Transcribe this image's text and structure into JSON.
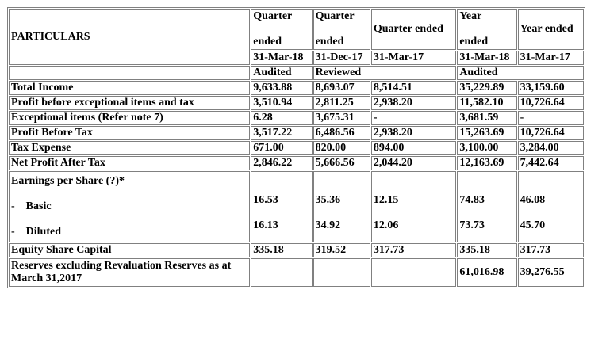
{
  "header": {
    "particulars": "PARTICULARS",
    "q1": {
      "line1": "Quarter",
      "line2": "ended",
      "date": "31-Mar-18",
      "status": "Audited"
    },
    "q2": {
      "line1": "Quarter",
      "line2": "ended",
      "date": "31-Dec-17",
      "status": "Reviewed"
    },
    "q3": {
      "line1": "Quarter ended",
      "date": "31-Mar-17",
      "status": ""
    },
    "y1": {
      "line1": "Year",
      "line2": "ended",
      "date": "31-Mar-18",
      "status": "Audited"
    },
    "y2": {
      "line1": "Year ended",
      "date": "31-Mar-17",
      "status": ""
    }
  },
  "rows": [
    {
      "label": "Total Income",
      "v": [
        "9,633.88",
        "8,693.07",
        "8,514.51",
        "35,229.89",
        "33,159.60"
      ]
    },
    {
      "label": "Profit before exceptional items and tax",
      "v": [
        "3,510.94",
        "2,811.25",
        "2,938.20",
        "11,582.10",
        "10,726.64"
      ]
    },
    {
      "label": "Exceptional items (Refer note 7)",
      "v": [
        "6.28",
        "3,675.31",
        "-",
        "3,681.59",
        "-"
      ]
    },
    {
      "label": "Profit Before Tax",
      "v": [
        "3,517.22",
        "6,486.56",
        "2,938.20",
        "15,263.69",
        "10,726.64"
      ]
    },
    {
      "label": "Tax Expense",
      "v": [
        "671.00",
        "820.00",
        "894.00",
        "3,100.00",
        "3,284.00"
      ]
    },
    {
      "label": "Net Profit After Tax",
      "v": [
        "2,846.22",
        "5,666.56",
        "2,044.20",
        "12,163.69",
        "7,442.64"
      ]
    }
  ],
  "eps": {
    "title": "Earnings per Share (?)*",
    "basic_label": "-    Basic",
    "diluted_label": "-    Diluted",
    "basic": [
      "16.53",
      "35.36",
      "12.15",
      "74.83",
      "46.08"
    ],
    "diluted": [
      "16.13",
      "34.92",
      "12.06",
      "73.73",
      "45.70"
    ]
  },
  "equity": {
    "label": "Equity Share Capital",
    "v": [
      "335.18",
      "319.52",
      "317.73",
      "335.18",
      "317.73"
    ]
  },
  "reserves": {
    "label": "Reserves excluding Revaluation Reserves as at March 31,2017",
    "v": [
      "",
      "",
      "",
      "61,016.98",
      "39,276.55"
    ]
  }
}
